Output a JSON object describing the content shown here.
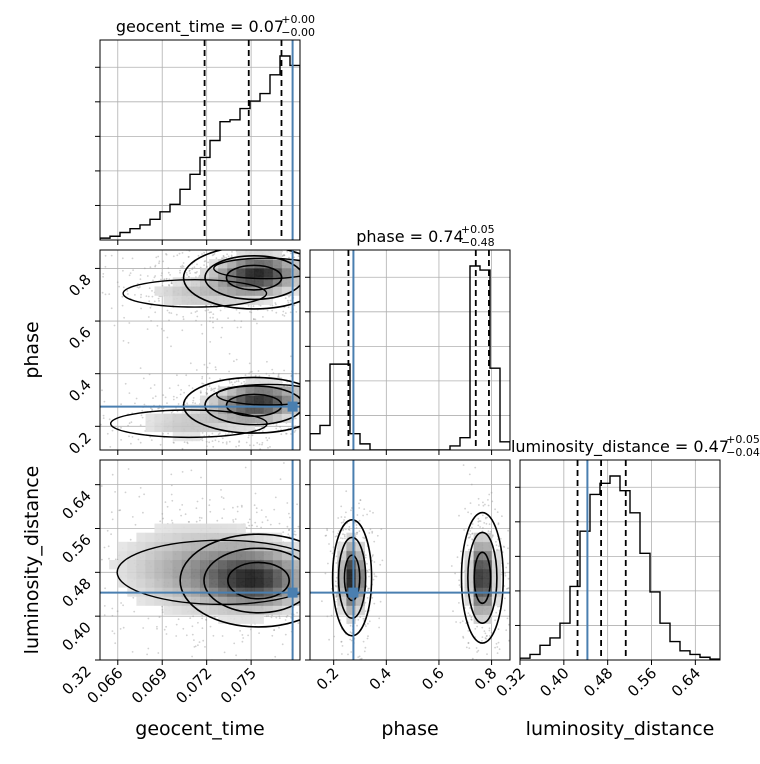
{
  "chart_data": {
    "type": "corner",
    "parameters": [
      {
        "key": "geocent_time",
        "label": "geocent_time",
        "title": "geocent_time = 0.07",
        "title_plus": "+0.00",
        "title_minus": "−0.00",
        "range": [
          0.0648,
          0.0783
        ],
        "ticks": [
          0.066,
          0.069,
          0.072,
          0.075
        ],
        "tick_labels": [
          "0.066",
          "0.069",
          "0.072",
          "0.075"
        ],
        "quantiles": [
          0.07186,
          0.07484,
          0.07705
        ],
        "truth": 0.0778,
        "hist_edges_start": 0.0648,
        "hist_bin_width": 0.000675,
        "hist_values": [
          0.01,
          0.02,
          0.04,
          0.06,
          0.08,
          0.11,
          0.15,
          0.19,
          0.27,
          0.35,
          0.44,
          0.53,
          0.63,
          0.64,
          0.7,
          0.74,
          0.78,
          0.88,
          0.98,
          0.93
        ]
      },
      {
        "key": "phase",
        "label": "phase",
        "title": "phase = 0.74",
        "title_plus": "+0.05",
        "title_minus": "−0.48",
        "range": [
          0.11,
          0.87
        ],
        "ticks": [
          0.2,
          0.4,
          0.6,
          0.8
        ],
        "tick_labels": [
          "0.2",
          "0.4",
          "0.6",
          "0.8"
        ],
        "quantiles": [
          0.256,
          0.74,
          0.79
        ],
        "truth": 0.275,
        "hist_edges_start": 0.11,
        "hist_bin_width": 0.038,
        "hist_values": [
          0.08,
          0.12,
          0.42,
          0.42,
          0.08,
          0.03,
          0.0,
          0.0,
          0.0,
          0.0,
          0.0,
          0.0,
          0.0,
          0.0,
          0.02,
          0.06,
          0.9,
          0.88,
          0.4,
          0.04
        ]
      },
      {
        "key": "luminosity_distance",
        "label": "luminosity_distance",
        "title": "luminosity_distance = 0.47",
        "title_plus": "+0.05",
        "title_minus": "−0.04",
        "range": [
          0.32,
          0.685
        ],
        "ticks": [
          0.32,
          0.4,
          0.48,
          0.56,
          0.64
        ],
        "tick_labels": [
          "0.32",
          "0.40",
          "0.48",
          "0.56",
          "0.64"
        ],
        "quantiles": [
          0.425,
          0.468,
          0.513
        ],
        "truth": 0.443,
        "hist_edges_start": 0.32,
        "hist_bin_width": 0.01825,
        "hist_values": [
          0.01,
          0.03,
          0.08,
          0.12,
          0.2,
          0.4,
          0.7,
          0.9,
          0.96,
          1.0,
          0.92,
          0.8,
          0.58,
          0.37,
          0.2,
          0.1,
          0.05,
          0.03,
          0.015,
          0.005
        ]
      }
    ],
    "pairs": [
      {
        "x": "geocent_time",
        "y": "phase",
        "blobs": [
          {
            "cx": 0.0752,
            "cy": 0.765,
            "sx": 0.0018,
            "sy": 0.045,
            "w": 1.0
          },
          {
            "cx": 0.076,
            "cy": 0.8,
            "sx": 0.0016,
            "sy": 0.03,
            "w": 0.5
          },
          {
            "cx": 0.0712,
            "cy": 0.705,
            "sx": 0.0022,
            "sy": 0.04,
            "w": 0.35
          },
          {
            "cx": 0.0752,
            "cy": 0.28,
            "sx": 0.0018,
            "sy": 0.04,
            "w": 1.0
          },
          {
            "cx": 0.0762,
            "cy": 0.32,
            "sx": 0.0016,
            "sy": 0.03,
            "w": 0.5
          },
          {
            "cx": 0.0708,
            "cy": 0.21,
            "sx": 0.0024,
            "sy": 0.04,
            "w": 0.35
          }
        ]
      },
      {
        "x": "geocent_time",
        "y": "luminosity_distance",
        "blobs": [
          {
            "cx": 0.0755,
            "cy": 0.465,
            "sx": 0.002,
            "sy": 0.032,
            "w": 1.0
          },
          {
            "cx": 0.073,
            "cy": 0.48,
            "sx": 0.0032,
            "sy": 0.045,
            "w": 0.6
          },
          {
            "cx": 0.07,
            "cy": 0.495,
            "sx": 0.004,
            "sy": 0.06,
            "w": 0.25
          }
        ]
      },
      {
        "x": "phase",
        "y": "luminosity_distance",
        "blobs": [
          {
            "cx": 0.27,
            "cy": 0.47,
            "sx": 0.028,
            "sy": 0.04,
            "w": 1.0
          },
          {
            "cx": 0.765,
            "cy": 0.47,
            "sx": 0.03,
            "sy": 0.045,
            "w": 1.0
          }
        ]
      }
    ],
    "colors": {
      "truth": "#4a7fb0",
      "hist": "#000000",
      "quantile": "#000000",
      "grid": "#b0b0b0",
      "points": "#9a9a9a",
      "density": "#000000"
    },
    "grid": true
  }
}
